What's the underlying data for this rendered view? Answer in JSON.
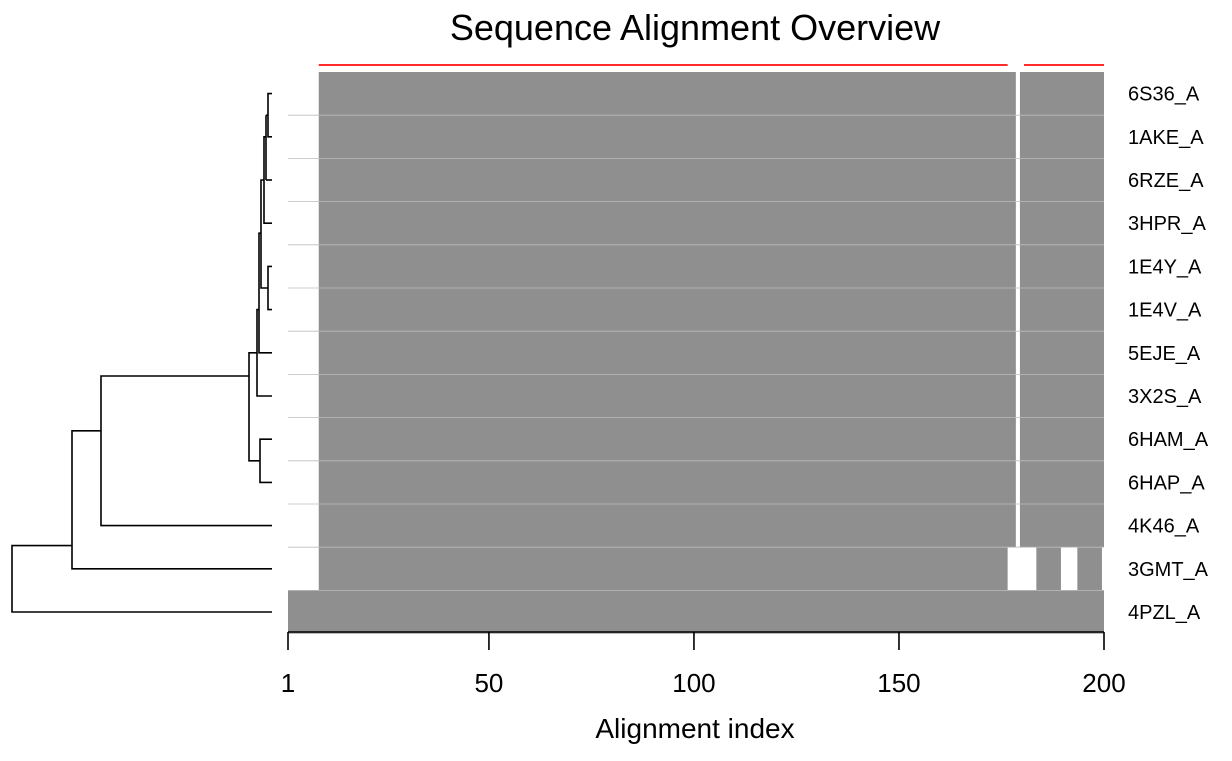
{
  "chart_data": {
    "type": "heatmap",
    "title": "Sequence Alignment Overview",
    "xlabel": "Alignment index",
    "ylabel": "",
    "x_ticks": [
      1,
      50,
      100,
      150,
      200
    ],
    "xlim": [
      1,
      200
    ],
    "colors": {
      "aligned": "#8f8f8f",
      "conservation": "#ff2a2a",
      "tree": "#000000"
    },
    "sequences": [
      {
        "name": "6S36_A",
        "segments": [
          [
            9,
            178
          ],
          [
            180,
            200
          ]
        ]
      },
      {
        "name": "1AKE_A",
        "segments": [
          [
            9,
            178
          ],
          [
            180,
            200
          ]
        ]
      },
      {
        "name": "6RZE_A",
        "segments": [
          [
            9,
            178
          ],
          [
            180,
            200
          ]
        ]
      },
      {
        "name": "3HPR_A",
        "segments": [
          [
            9,
            178
          ],
          [
            180,
            200
          ]
        ]
      },
      {
        "name": "1E4Y_A",
        "segments": [
          [
            9,
            178
          ],
          [
            180,
            200
          ]
        ]
      },
      {
        "name": "1E4V_A",
        "segments": [
          [
            9,
            178
          ],
          [
            180,
            200
          ]
        ]
      },
      {
        "name": "5EJE_A",
        "segments": [
          [
            9,
            178
          ],
          [
            180,
            200
          ]
        ]
      },
      {
        "name": "3X2S_A",
        "segments": [
          [
            9,
            178
          ],
          [
            180,
            200
          ]
        ]
      },
      {
        "name": "6HAM_A",
        "segments": [
          [
            9,
            178
          ],
          [
            180,
            200
          ]
        ]
      },
      {
        "name": "6HAP_A",
        "segments": [
          [
            9,
            178
          ],
          [
            180,
            200
          ]
        ]
      },
      {
        "name": "4K46_A",
        "segments": [
          [
            9,
            178
          ],
          [
            180,
            200
          ]
        ]
      },
      {
        "name": "3GMT_A",
        "segments": [
          [
            9,
            176
          ],
          [
            184,
            189
          ],
          [
            194,
            199
          ]
        ]
      },
      {
        "name": "4PZL_A",
        "segments": [
          [
            1,
            200
          ]
        ]
      }
    ],
    "conservation_segments": [
      [
        9,
        176
      ],
      [
        181,
        200
      ]
    ]
  }
}
